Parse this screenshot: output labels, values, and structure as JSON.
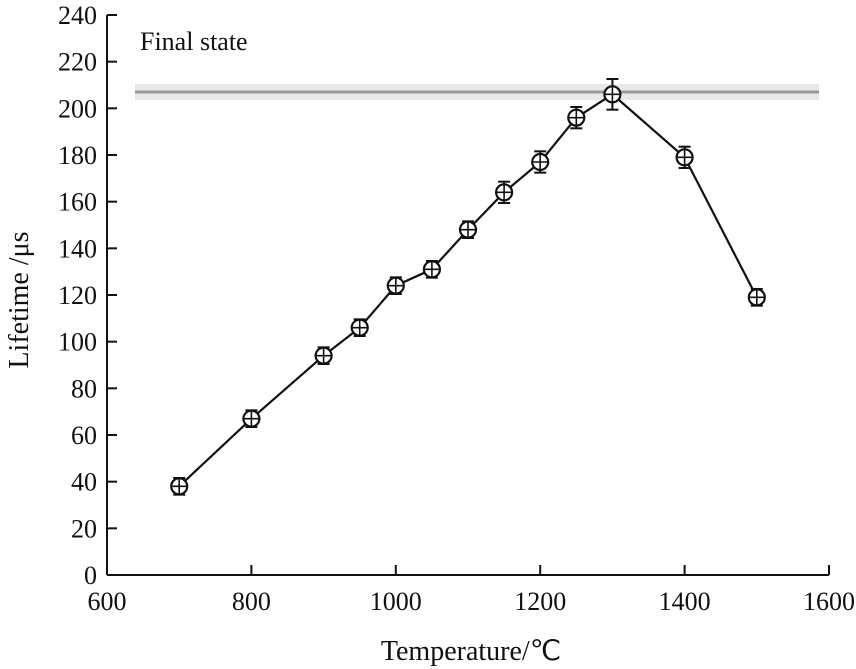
{
  "chart_data": {
    "type": "line",
    "title": "",
    "annotation": "Final state",
    "xlabel": "Temperature/℃",
    "ylabel": "Lifetime /μs",
    "xlim": [
      600,
      1600
    ],
    "ylim": [
      0,
      240
    ],
    "x_ticks": [
      600,
      800,
      1000,
      1200,
      1400,
      1600
    ],
    "y_ticks": [
      0,
      20,
      40,
      60,
      80,
      100,
      120,
      140,
      160,
      180,
      200,
      220,
      240
    ],
    "reference_line_y": 207,
    "grid": false,
    "series": [
      {
        "x": [
          700,
          800,
          900,
          950,
          1000,
          1050,
          1100,
          1150,
          1200,
          1250,
          1300,
          1400,
          1500
        ],
        "y": [
          38,
          67,
          94,
          106,
          124,
          131,
          148,
          164,
          177,
          196,
          206,
          179,
          119
        ],
        "markers": [
          "crossed",
          "crossed",
          "crossed",
          "crossed",
          "crossed",
          "crossed",
          "crossed",
          "crossed",
          "crossed",
          "crossed",
          "crossed",
          "crossed",
          "crossed"
        ],
        "error": [
          1,
          1,
          1,
          1,
          1,
          1,
          1,
          2,
          2,
          2,
          4,
          2,
          1
        ]
      }
    ]
  }
}
